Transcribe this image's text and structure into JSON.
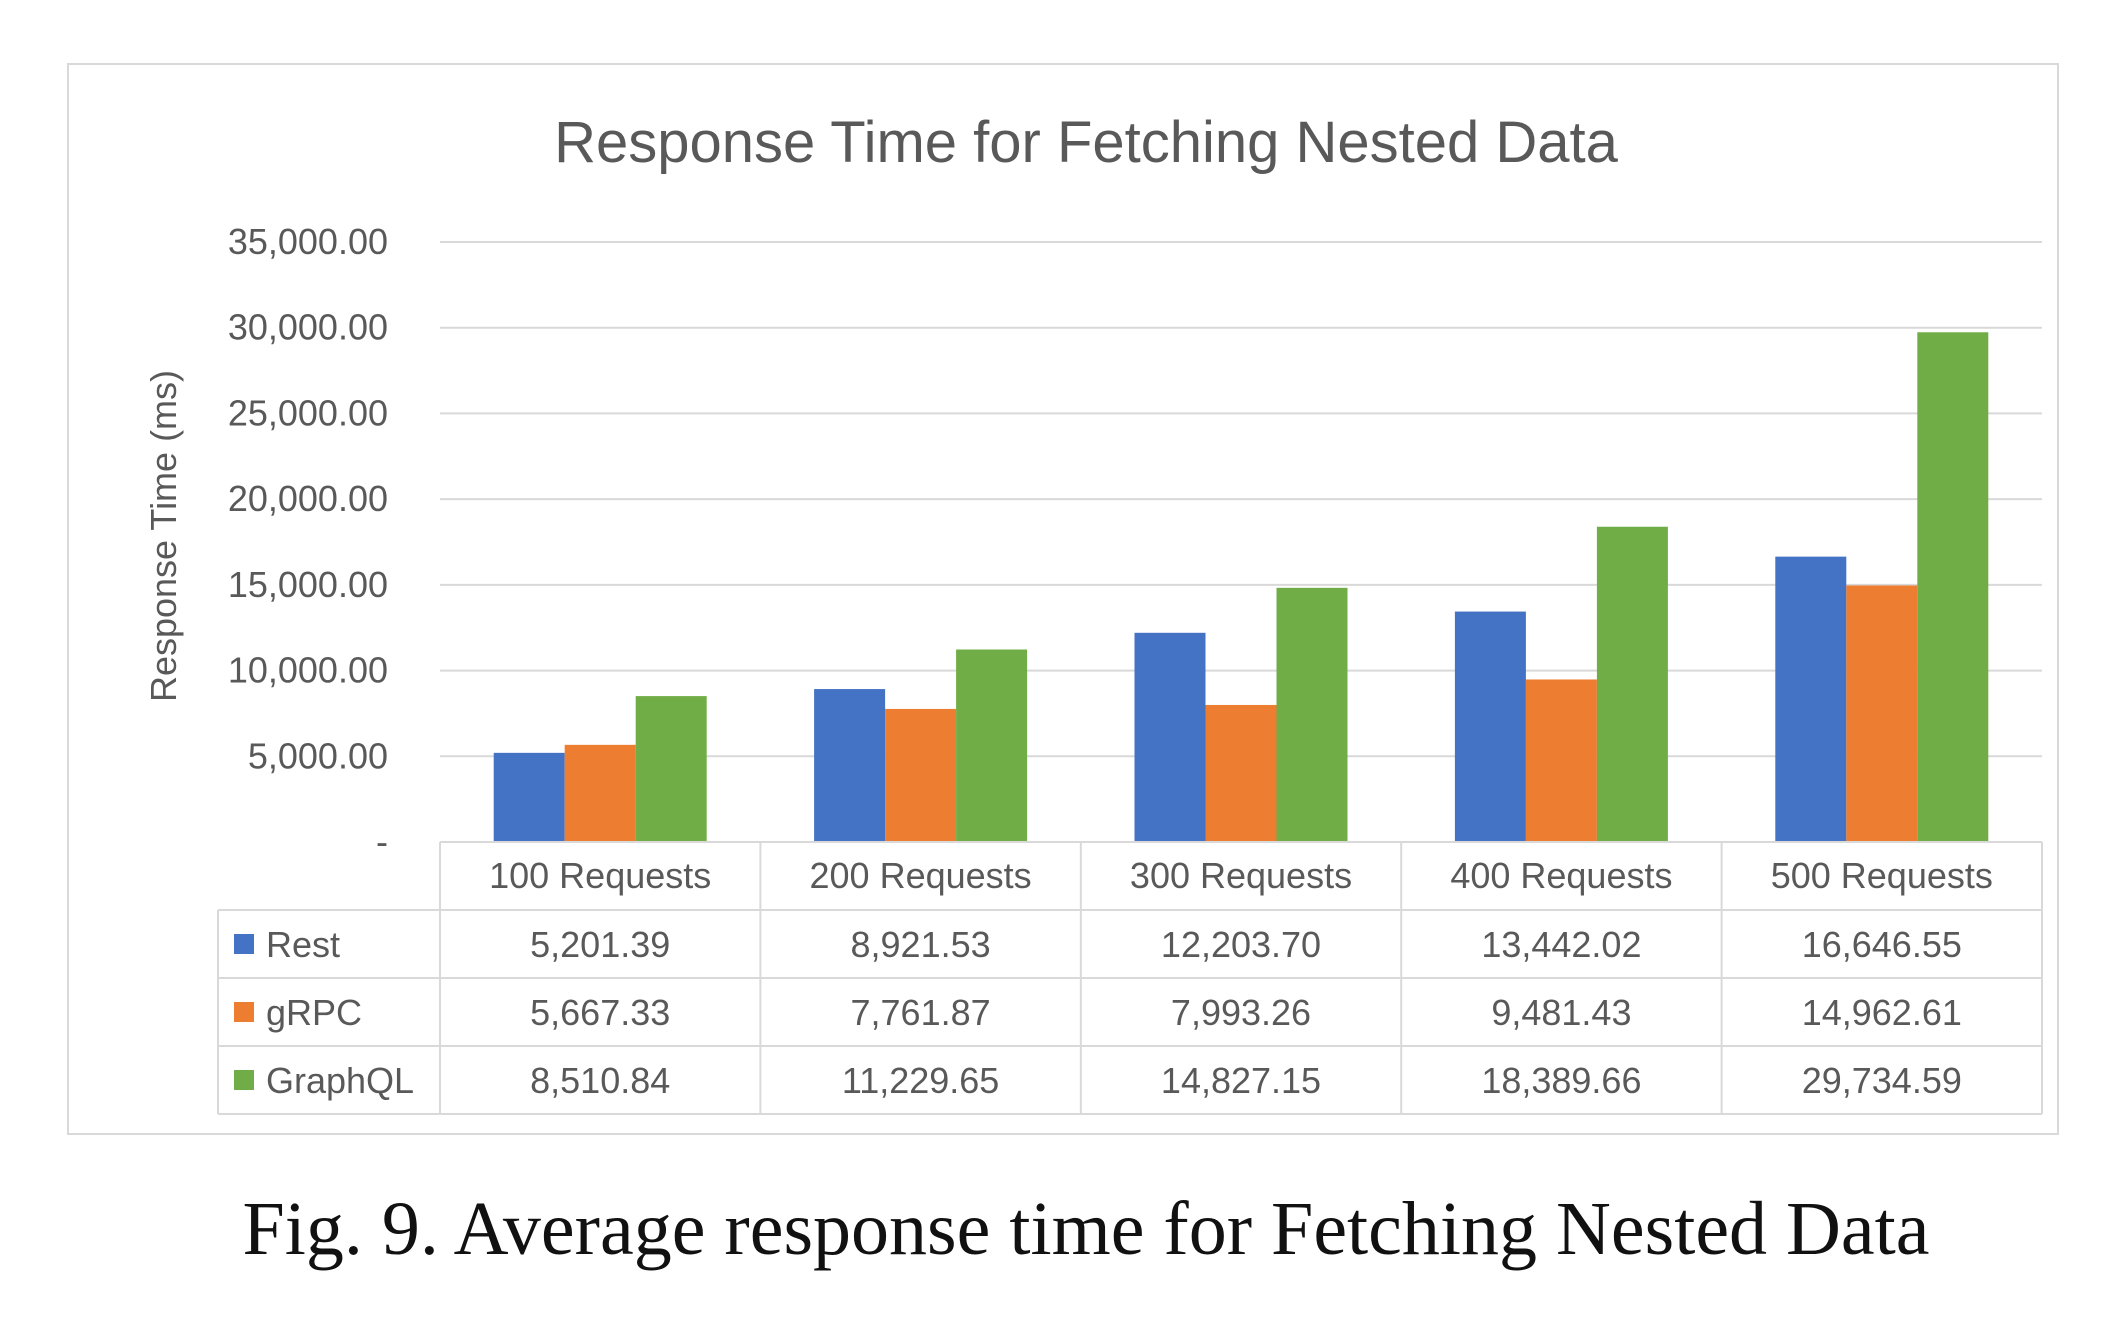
{
  "chart_data": {
    "type": "bar",
    "title": "Response Time for Fetching Nested Data",
    "ylabel": "Response Time (ms)",
    "xlabel": "",
    "ylim": [
      0,
      35000
    ],
    "yticks": [
      0,
      5000,
      10000,
      15000,
      20000,
      25000,
      30000,
      35000
    ],
    "ytick_labels": [
      "-",
      "5,000.00",
      "10,000.00",
      "15,000.00",
      "20,000.00",
      "25,000.00",
      "30,000.00",
      "35,000.00"
    ],
    "grid": true,
    "legend": "data table below the chart",
    "categories": [
      "100 Requests",
      "200 Requests",
      "300 Requests",
      "400 Requests",
      "500 Requests"
    ],
    "series": [
      {
        "name": "Rest",
        "color": "#4472c4",
        "values": [
          5201.39,
          8921.53,
          12203.7,
          13442.02,
          16646.55
        ],
        "labels": [
          "5,201.39",
          "8,921.53",
          "12,203.70",
          "13,442.02",
          "16,646.55"
        ]
      },
      {
        "name": "gRPC",
        "color": "#ed7d31",
        "values": [
          5667.33,
          7761.87,
          7993.26,
          9481.43,
          14962.61
        ],
        "labels": [
          "5,667.33",
          "7,761.87",
          "7,993.26",
          "9,481.43",
          "14,962.61"
        ]
      },
      {
        "name": "GraphQL",
        "color": "#70ad47",
        "values": [
          8510.84,
          11229.65,
          14827.15,
          18389.66,
          29734.59
        ],
        "labels": [
          "8,510.84",
          "11,229.65",
          "14,827.15",
          "18,389.66",
          "29,734.59"
        ]
      }
    ]
  },
  "caption": "Fig. 9. Average response time for Fetching Nested Data"
}
